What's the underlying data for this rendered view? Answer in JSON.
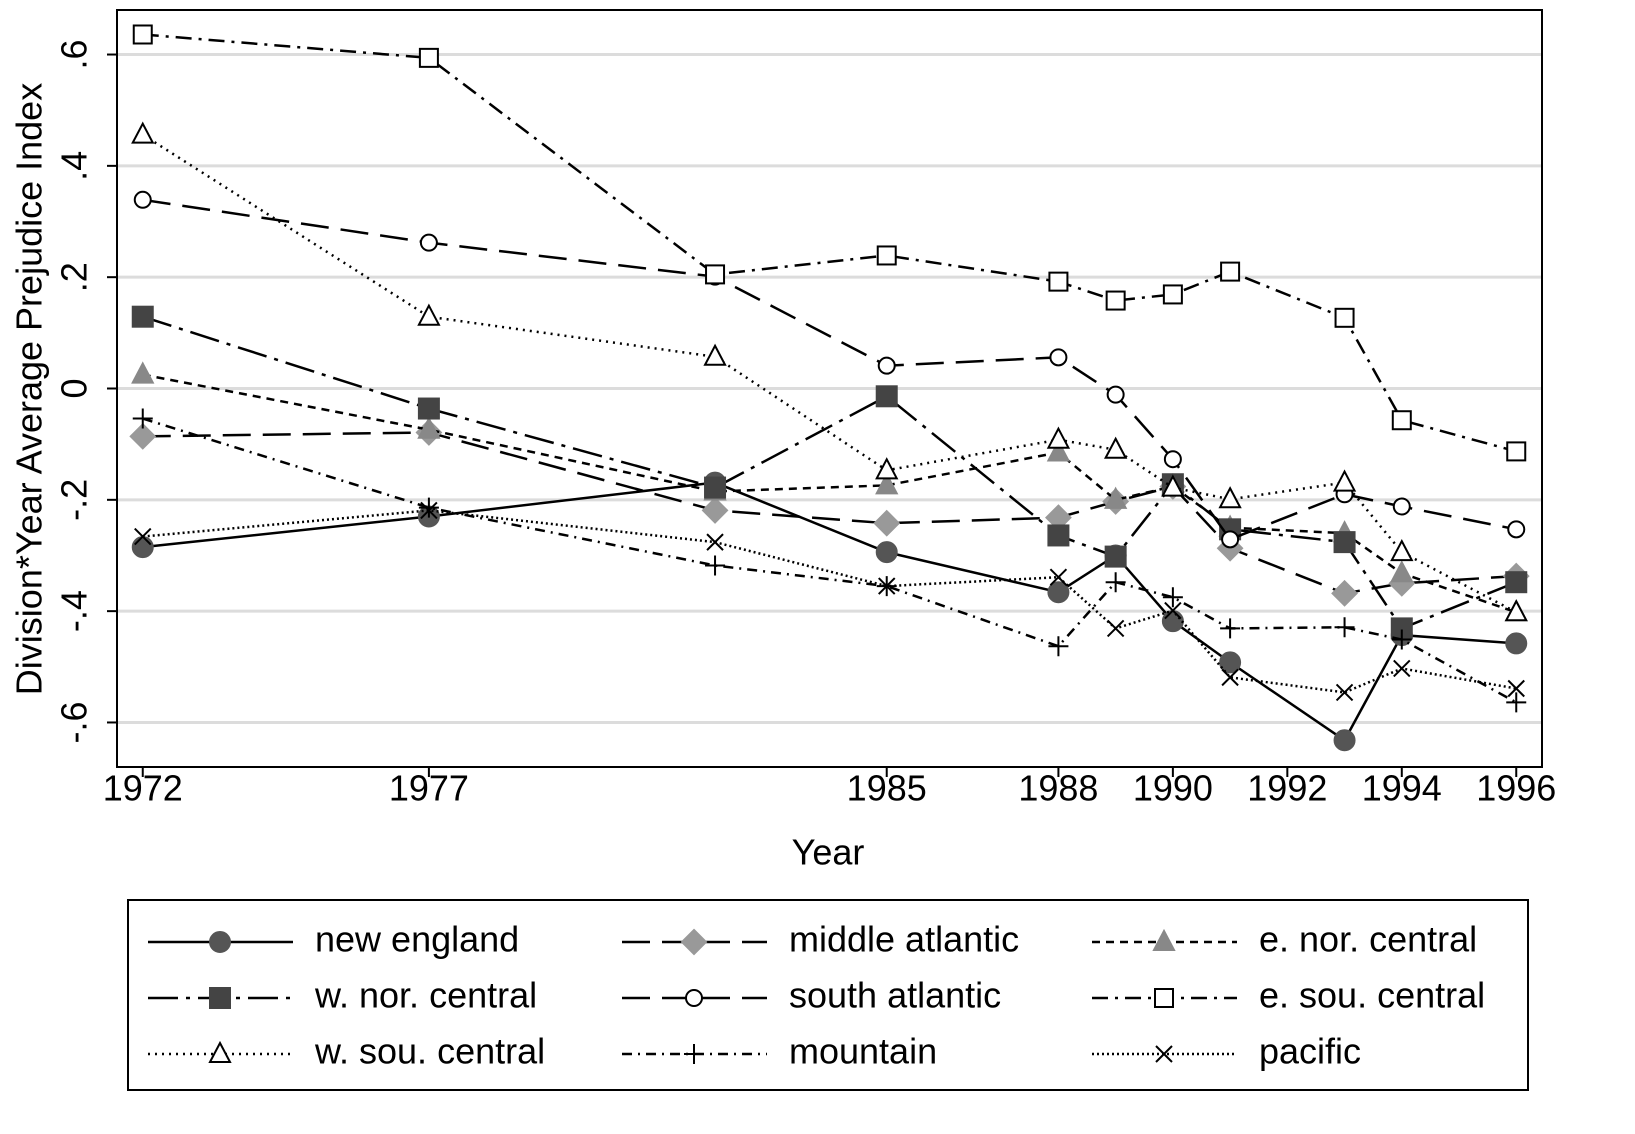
{
  "chart_data": {
    "type": "line",
    "x_label": "Year",
    "y_label": "Division*Year Average Prejudice Index",
    "x": [
      1972,
      1977,
      1982,
      1985,
      1988,
      1989,
      1990,
      1991,
      1993,
      1994,
      1996
    ],
    "xlim": [
      1971.55,
      1996.45
    ],
    "xticks": [
      1972,
      1977,
      1985,
      1988,
      1990,
      1992,
      1994,
      1996
    ],
    "ylim": [
      -0.68,
      0.68
    ],
    "yticks": [
      {
        "value": 0.6,
        "label": ".6"
      },
      {
        "value": 0.4,
        "label": ".4"
      },
      {
        "value": 0.2,
        "label": ".2"
      },
      0,
      {
        "value": -0.2,
        "label": "-.2"
      },
      {
        "value": -0.4,
        "label": "-.4"
      },
      {
        "value": -0.6,
        "label": "-.6"
      }
    ],
    "grid": true,
    "series": [
      {
        "name": "new england",
        "color": "#555555",
        "marker": "circle",
        "filled": true,
        "dash": "solid",
        "values": [
          -0.285,
          -0.23,
          -0.169,
          -0.294,
          -0.366,
          -0.3,
          -0.418,
          -0.492,
          -0.632,
          -0.443,
          -0.458
        ]
      },
      {
        "name": "middle atlantic",
        "color": "#999999",
        "marker": "diamond",
        "filled": true,
        "dash": "longdash",
        "values": [
          -0.086,
          -0.079,
          -0.219,
          -0.242,
          -0.232,
          -0.203,
          -0.176,
          -0.287,
          -0.368,
          -0.35,
          -0.337
        ]
      },
      {
        "name": "e. nor. central",
        "color": "#888888",
        "marker": "triangle",
        "filled": true,
        "dash": "shortdash",
        "values": [
          0.025,
          -0.074,
          -0.185,
          -0.174,
          -0.115,
          -0.2,
          -0.176,
          -0.25,
          -0.26,
          -0.332,
          -0.402
        ]
      },
      {
        "name": "w. nor. central",
        "color": "#444444",
        "marker": "square",
        "filled": true,
        "dash": "longdashdot",
        "values": [
          0.129,
          -0.036,
          -0.178,
          -0.014,
          -0.264,
          -0.302,
          -0.172,
          -0.253,
          -0.276,
          -0.431,
          -0.348
        ]
      },
      {
        "name": "south atlantic",
        "color": "#000000",
        "marker": "circle",
        "filled": false,
        "dash": "longdash",
        "values": [
          0.339,
          0.262,
          0.201,
          0.041,
          0.056,
          -0.011,
          -0.127,
          -0.271,
          -0.19,
          -0.212,
          -0.253
        ]
      },
      {
        "name": "e. sou. central",
        "color": "#000000",
        "marker": "square",
        "filled": false,
        "dash": "dashdot",
        "values": [
          0.636,
          0.594,
          0.205,
          0.239,
          0.192,
          0.158,
          0.169,
          0.21,
          0.127,
          -0.057,
          -0.113
        ]
      },
      {
        "name": "w. sou. central",
        "color": "#000000",
        "marker": "triangle",
        "filled": false,
        "dash": "dot",
        "values": [
          0.456,
          0.129,
          0.057,
          -0.147,
          -0.092,
          -0.11,
          -0.178,
          -0.199,
          -0.169,
          -0.294,
          -0.402
        ]
      },
      {
        "name": "mountain",
        "color": "#000000",
        "marker": "plus",
        "filled": false,
        "dash": "shortdashdot",
        "values": [
          -0.054,
          -0.214,
          -0.318,
          -0.355,
          -0.463,
          -0.348,
          -0.375,
          -0.431,
          -0.429,
          -0.451,
          -0.564
        ]
      },
      {
        "name": "pacific",
        "color": "#000000",
        "marker": "x",
        "filled": false,
        "dash": "finedot",
        "values": [
          -0.266,
          -0.219,
          -0.276,
          -0.355,
          -0.339,
          -0.431,
          -0.399,
          -0.519,
          -0.546,
          -0.503,
          -0.539
        ]
      }
    ]
  }
}
